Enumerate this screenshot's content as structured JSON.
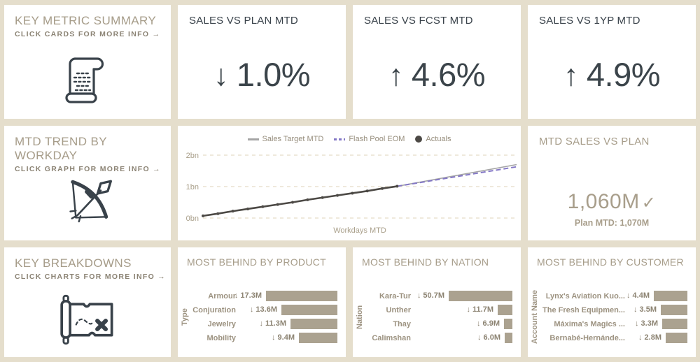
{
  "page": {
    "background": "#e5decc",
    "card_background": "#ffffff"
  },
  "colors": {
    "title_tan": "#a69c89",
    "subtitle": "#8b8374",
    "dark_slate": "#3b444a",
    "bar": "#aba290",
    "target_line": "#a5a5a5",
    "forecast_line": "#8478c6",
    "actuals_line": "#4c4945",
    "gridline": "#eae2d1"
  },
  "cards": {
    "key_metric_summary": {
      "title": "KEY METRIC SUMMARY",
      "subtitle": "CLICK CARDS FOR MORE INFO →",
      "icon": "scroll-icon"
    },
    "sales_vs_plan_mtd": {
      "title": "SALES VS PLAN MTD",
      "arrow": "↓",
      "value": "1.0%"
    },
    "sales_vs_fcst_mtd": {
      "title": "SALES VS FCST MTD",
      "arrow": "↑",
      "value": "4.6%"
    },
    "sales_vs_1yp_mtd": {
      "title": "SALES VS 1YP MTD",
      "arrow": "↑",
      "value": "4.9%"
    },
    "mtd_trend_by_workday": {
      "title": "MTD TREND BY WORKDAY",
      "subtitle": "CLICK GRAPH FOR MORE INFO →",
      "icon": "bow-arrow-icon"
    },
    "mtd_sales_vs_plan": {
      "title": "MTD SALES VS PLAN",
      "value": "1,060M",
      "check": "✓",
      "plan": "Plan MTD: 1,070M"
    },
    "key_breakdowns": {
      "title": "KEY BREAKDOWNS",
      "subtitle": "CLICK CHARTS FOR MORE INFO →",
      "icon": "treasure-map-icon"
    }
  },
  "chart_data": [
    {
      "type": "line",
      "title": "MTD trend by workday",
      "xlabel": "Workdays MTD",
      "ylabel": "",
      "xlim": [
        1,
        22
      ],
      "ylim": [
        0,
        2.4
      ],
      "grid": "dashed-horizontal",
      "legend_position": "top-center",
      "yticks": [
        {
          "label": "0bn",
          "value": 0
        },
        {
          "label": "1bn",
          "value": 1
        },
        {
          "label": "2bn",
          "value": 2
        }
      ],
      "series": [
        {
          "name": "Sales Target MTD",
          "color": "#a5a5a5",
          "style": "solid",
          "markers": false,
          "points": [
            [
              1,
              0.07
            ],
            [
              14,
              1.01
            ],
            [
              22,
              1.7
            ]
          ]
        },
        {
          "name": "Flash Pool EOM",
          "color": "#8478c6",
          "style": "dashed",
          "markers": false,
          "points": [
            [
              14,
              1.01
            ],
            [
              22,
              1.63
            ]
          ]
        },
        {
          "name": "Actuals",
          "color": "#4c4945",
          "style": "solid",
          "markers": true,
          "points": [
            [
              1,
              0.07
            ],
            [
              2,
              0.14
            ],
            [
              3,
              0.22
            ],
            [
              4,
              0.29
            ],
            [
              5,
              0.36
            ],
            [
              6,
              0.43
            ],
            [
              7,
              0.5
            ],
            [
              8,
              0.58
            ],
            [
              9,
              0.65
            ],
            [
              10,
              0.72
            ],
            [
              11,
              0.79
            ],
            [
              12,
              0.86
            ],
            [
              13,
              0.94
            ],
            [
              14,
              1.01
            ]
          ]
        }
      ]
    },
    {
      "type": "bar",
      "title": "MOST BEHIND BY PRODUCT",
      "axis_label": "Type",
      "anchor": "right",
      "unit": "M",
      "bar_color": "#aba290",
      "categories": [
        "Armour",
        "Conjuration",
        "Jewelry",
        "Mobility"
      ],
      "values": [
        17.3,
        13.6,
        11.3,
        9.4
      ],
      "value_labels": [
        "↓ 17.3M",
        "↓ 13.6M",
        "↓ 11.3M",
        "↓ 9.4M"
      ]
    },
    {
      "type": "bar",
      "title": "MOST BEHIND BY NATION",
      "axis_label": "Nation",
      "anchor": "right",
      "unit": "M",
      "bar_color": "#aba290",
      "categories": [
        "Kara-Tur",
        "Unther",
        "Thay",
        "Calimshan"
      ],
      "values": [
        50.7,
        11.7,
        6.9,
        6.0
      ],
      "value_labels": [
        "↓ 50.7M",
        "↓ 11.7M",
        "↓ 6.9M",
        "↓ 6.0M"
      ]
    },
    {
      "type": "bar",
      "title": "MOST BEHIND BY CUSTOMER",
      "axis_label": "Account Name",
      "anchor": "right",
      "unit": "M",
      "bar_color": "#aba290",
      "categories": [
        "Lynx's Aviation Kuo...",
        "The Fresh Equipmen...",
        "Máxima's Magics ...",
        "Bernabé-Hernánde..."
      ],
      "values": [
        4.4,
        3.5,
        3.3,
        2.8
      ],
      "value_labels": [
        "↓ 4.4M",
        "↓ 3.5M",
        "↓ 3.3M",
        "↓ 2.8M"
      ]
    }
  ]
}
